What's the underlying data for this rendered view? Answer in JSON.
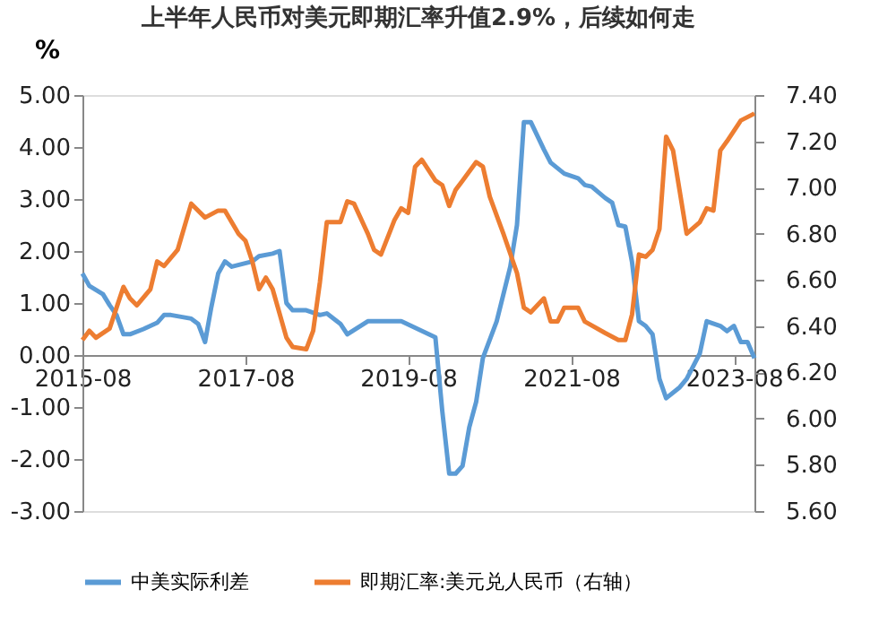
{
  "chart_data": {
    "type": "line",
    "title": "上半年人民币对美元即期汇率升值2.9%，后续如何走",
    "ylabel": "%",
    "xlim": [
      "2015-08",
      "2023-11"
    ],
    "xticks": [
      "2015-08",
      "2017-08",
      "2019-08",
      "2021-08",
      "2023-08"
    ],
    "ylim": [
      -3,
      5
    ],
    "yticks": [
      {
        "value": -3,
        "label": "-3.00"
      },
      {
        "value": -2,
        "label": "-2.00"
      },
      {
        "value": -1,
        "label": "-1.00"
      },
      {
        "value": 0,
        "label": "0.00"
      },
      {
        "value": 1,
        "label": "1.00"
      },
      {
        "value": 2,
        "label": "2.00"
      },
      {
        "value": 3,
        "label": "3.00"
      },
      {
        "value": 4,
        "label": "4.00"
      },
      {
        "value": 5,
        "label": "5.00"
      }
    ],
    "y2lim": [
      5.6,
      7.4
    ],
    "y2ticks": [
      {
        "value": 5.6,
        "label": "5.60"
      },
      {
        "value": 5.8,
        "label": "5.80"
      },
      {
        "value": 6.0,
        "label": "6.00"
      },
      {
        "value": 6.2,
        "label": "6.20"
      },
      {
        "value": 6.4,
        "label": "6.40"
      },
      {
        "value": 6.6,
        "label": "6.60"
      },
      {
        "value": 6.8,
        "label": "6.80"
      },
      {
        "value": 7.0,
        "label": "7.00"
      },
      {
        "value": 7.2,
        "label": "7.20"
      },
      {
        "value": 7.4,
        "label": "7.40"
      }
    ],
    "grid": false,
    "legend": "bottom",
    "marker": "none",
    "line_style": "solid",
    "series": [
      {
        "name": "中美实际利差",
        "color": "#5b9bd5",
        "x": [
          "2015-08",
          "2015-09",
          "2015-11",
          "2015-12",
          "2016-01",
          "2016-02",
          "2016-03",
          "2016-05",
          "2016-07",
          "2016-08",
          "2016-09",
          "2016-12",
          "2017-01",
          "2017-02",
          "2017-03",
          "2017-04",
          "2017-05",
          "2017-06",
          "2017-09",
          "2017-10",
          "2017-12",
          "2018-01",
          "2018-02",
          "2018-03",
          "2018-05",
          "2018-07",
          "2018-08",
          "2018-10",
          "2018-11",
          "2019-02",
          "2019-07",
          "2019-12",
          "2020-01",
          "2020-02",
          "2020-03",
          "2020-04",
          "2020-05",
          "2020-06",
          "2020-07",
          "2020-09",
          "2020-11",
          "2020-12",
          "2021-01",
          "2021-02",
          "2021-04",
          "2021-05",
          "2021-07",
          "2021-09",
          "2021-10",
          "2021-11",
          "2022-01",
          "2022-02",
          "2022-03",
          "2022-04",
          "2022-05",
          "2022-06",
          "2022-07",
          "2022-08",
          "2022-09",
          "2022-10",
          "2022-12",
          "2023-01",
          "2023-03",
          "2023-04",
          "2023-06",
          "2023-07",
          "2023-08",
          "2023-09",
          "2023-10",
          "2023-11"
        ],
        "values": [
          1.57,
          1.33,
          1.17,
          0.96,
          0.77,
          0.4,
          0.4,
          0.5,
          0.62,
          0.77,
          0.77,
          0.7,
          0.6,
          0.25,
          0.92,
          1.57,
          1.8,
          1.7,
          1.8,
          1.9,
          1.95,
          2.0,
          1.0,
          0.86,
          0.86,
          0.77,
          0.8,
          0.6,
          0.4,
          0.65,
          0.65,
          0.34,
          -1.08,
          -2.28,
          -2.28,
          -2.13,
          -1.39,
          -0.9,
          -0.06,
          0.65,
          1.7,
          2.5,
          4.48,
          4.48,
          3.95,
          3.7,
          3.49,
          3.4,
          3.27,
          3.24,
          3.02,
          2.93,
          2.5,
          2.47,
          1.79,
          0.65,
          0.56,
          0.4,
          -0.46,
          -0.83,
          -0.62,
          -0.46,
          0.03,
          0.65,
          0.56,
          0.46,
          0.56,
          0.25,
          0.25,
          -0.06
        ]
      },
      {
        "name": "即期汇率:美元兑人民币（右轴）",
        "color": "#ed7d31",
        "axis": "y2",
        "x": [
          "2015-08",
          "2015-09",
          "2015-10",
          "2015-12",
          "2016-01",
          "2016-02",
          "2016-03",
          "2016-04",
          "2016-06",
          "2016-07",
          "2016-08",
          "2016-10",
          "2016-12",
          "2017-02",
          "2017-04",
          "2017-05",
          "2017-07",
          "2017-08",
          "2017-09",
          "2017-10",
          "2017-11",
          "2017-12",
          "2018-02",
          "2018-03",
          "2018-05",
          "2018-06",
          "2018-07",
          "2018-08",
          "2018-10",
          "2018-11",
          "2018-12",
          "2019-02",
          "2019-03",
          "2019-04",
          "2019-06",
          "2019-07",
          "2019-08",
          "2019-09",
          "2019-10",
          "2019-12",
          "2020-01",
          "2020-02",
          "2020-03",
          "2020-04",
          "2020-06",
          "2020-07",
          "2020-08",
          "2020-10",
          "2020-12",
          "2021-01",
          "2021-02",
          "2021-04",
          "2021-05",
          "2021-06",
          "2021-07",
          "2021-09",
          "2021-10",
          "2022-01",
          "2022-03",
          "2022-04",
          "2022-05",
          "2022-06",
          "2022-07",
          "2022-08",
          "2022-09",
          "2022-10",
          "2022-11",
          "2023-01",
          "2023-03",
          "2023-04",
          "2023-05",
          "2023-06",
          "2023-07",
          "2023-09",
          "2023-11"
        ],
        "values": [
          6.34,
          6.38,
          6.35,
          6.39,
          6.48,
          6.57,
          6.52,
          6.49,
          6.56,
          6.68,
          6.66,
          6.73,
          6.93,
          6.87,
          6.9,
          6.9,
          6.8,
          6.77,
          6.68,
          6.56,
          6.61,
          6.56,
          6.35,
          6.31,
          6.3,
          6.38,
          6.59,
          6.85,
          6.85,
          6.94,
          6.93,
          6.8,
          6.73,
          6.71,
          6.86,
          6.91,
          6.89,
          7.09,
          7.12,
          7.03,
          7.01,
          6.92,
          6.99,
          7.03,
          7.11,
          7.09,
          6.96,
          6.8,
          6.63,
          6.48,
          6.46,
          6.52,
          6.42,
          6.42,
          6.48,
          6.48,
          6.42,
          6.37,
          6.34,
          6.34,
          6.45,
          6.71,
          6.7,
          6.73,
          6.82,
          7.22,
          7.16,
          6.8,
          6.85,
          6.91,
          6.9,
          7.16,
          7.2,
          7.29,
          7.32
        ]
      }
    ]
  }
}
